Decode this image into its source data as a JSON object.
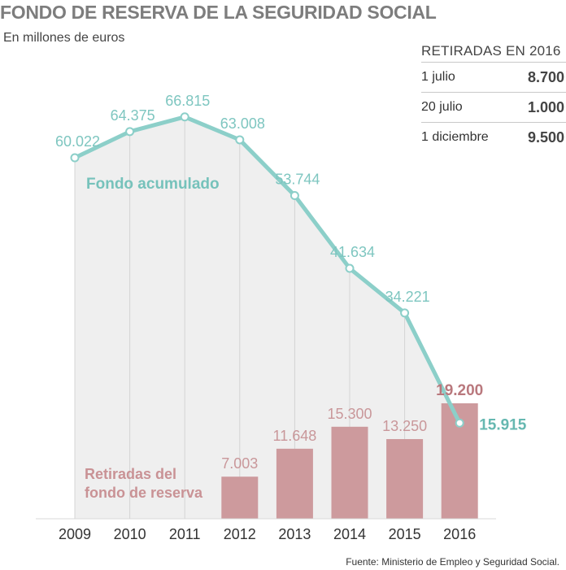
{
  "header": {
    "title": "FONDO DE RESERVA DE LA SEGURIDAD SOCIAL",
    "subtitle": "En millones de euros"
  },
  "retiradas_2016": {
    "title": "RETIRADAS EN 2016",
    "rows": [
      {
        "label": "1 julio",
        "value": "8.700"
      },
      {
        "label": "20 julio",
        "value": "1.000"
      },
      {
        "label": "1 diciembre",
        "value": "9.500"
      }
    ]
  },
  "footer": {
    "source": "Fuente: Ministerio de Empleo y Seguridad Social."
  },
  "colors": {
    "line": "#8ccfc9",
    "bar": "#cd9a9d",
    "area": "#efefef",
    "gridline": "#d4d4d4",
    "axis_text": "#333333"
  },
  "chart_data": {
    "type": "bar+line",
    "categories": [
      "2009",
      "2010",
      "2011",
      "2012",
      "2013",
      "2014",
      "2015",
      "2016"
    ],
    "series": [
      {
        "name": "Fondo acumulado",
        "type": "line",
        "values": [
          60022,
          64375,
          66815,
          63008,
          53744,
          41634,
          34221,
          15915
        ],
        "labels": [
          "60.022",
          "64.375",
          "66.815",
          "63.008",
          "53.744",
          "41.634",
          "34.221",
          "15.915"
        ]
      },
      {
        "name": "Retiradas del fondo de reserva",
        "name_lines": [
          "Retiradas del",
          "fondo de reserva"
        ],
        "type": "bar",
        "values": [
          null,
          null,
          null,
          7003,
          11648,
          15300,
          13250,
          19200
        ],
        "labels": [
          "",
          "",
          "",
          "7.003",
          "11.648",
          "15.300",
          "13.250",
          "19.200"
        ]
      }
    ],
    "ylim": [
      0,
      70000
    ],
    "grid": "vertical"
  }
}
